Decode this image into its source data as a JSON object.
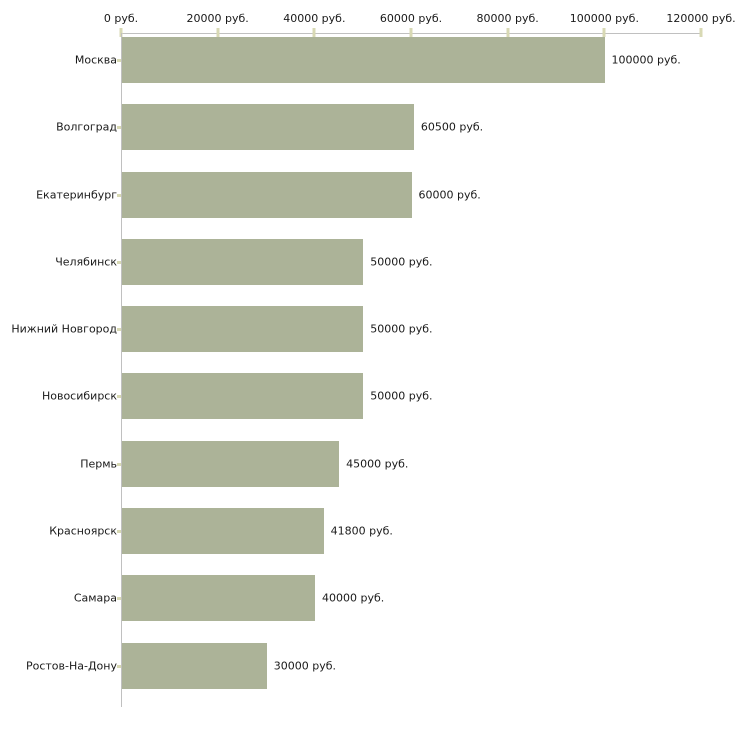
{
  "chart_data": {
    "type": "bar",
    "orientation": "horizontal",
    "categories": [
      "Москва",
      "Волгоград",
      "Екатеринбург",
      "Челябинск",
      "Нижний Новгород",
      "Новосибирск",
      "Пермь",
      "Красноярск",
      "Самара",
      "Ростов-На-Дону"
    ],
    "values": [
      100000,
      60500,
      60000,
      50000,
      50000,
      50000,
      45000,
      41800,
      40000,
      30000
    ],
    "value_labels": [
      "100000 руб.",
      "60500 руб.",
      "60000 руб.",
      "50000 руб.",
      "50000 руб.",
      "50000 руб.",
      "45000 руб.",
      "41800 руб.",
      "40000 руб.",
      "30000 руб."
    ],
    "unit": "руб.",
    "x_axis": {
      "position": "top",
      "range": [
        0,
        120000
      ],
      "tick_values": [
        0,
        20000,
        40000,
        60000,
        80000,
        100000,
        120000
      ],
      "tick_labels": [
        "0 руб.",
        "20000 руб.",
        "40000 руб.",
        "60000 руб.",
        "80000 руб.",
        "100000 руб.",
        "120000 руб."
      ]
    },
    "grid": false,
    "legend": false,
    "colors": {
      "bar": "#acb398",
      "axis_line": "#c0c0c0",
      "tick_mark": "#d8d9b4",
      "text": "#1a1a1a"
    }
  }
}
